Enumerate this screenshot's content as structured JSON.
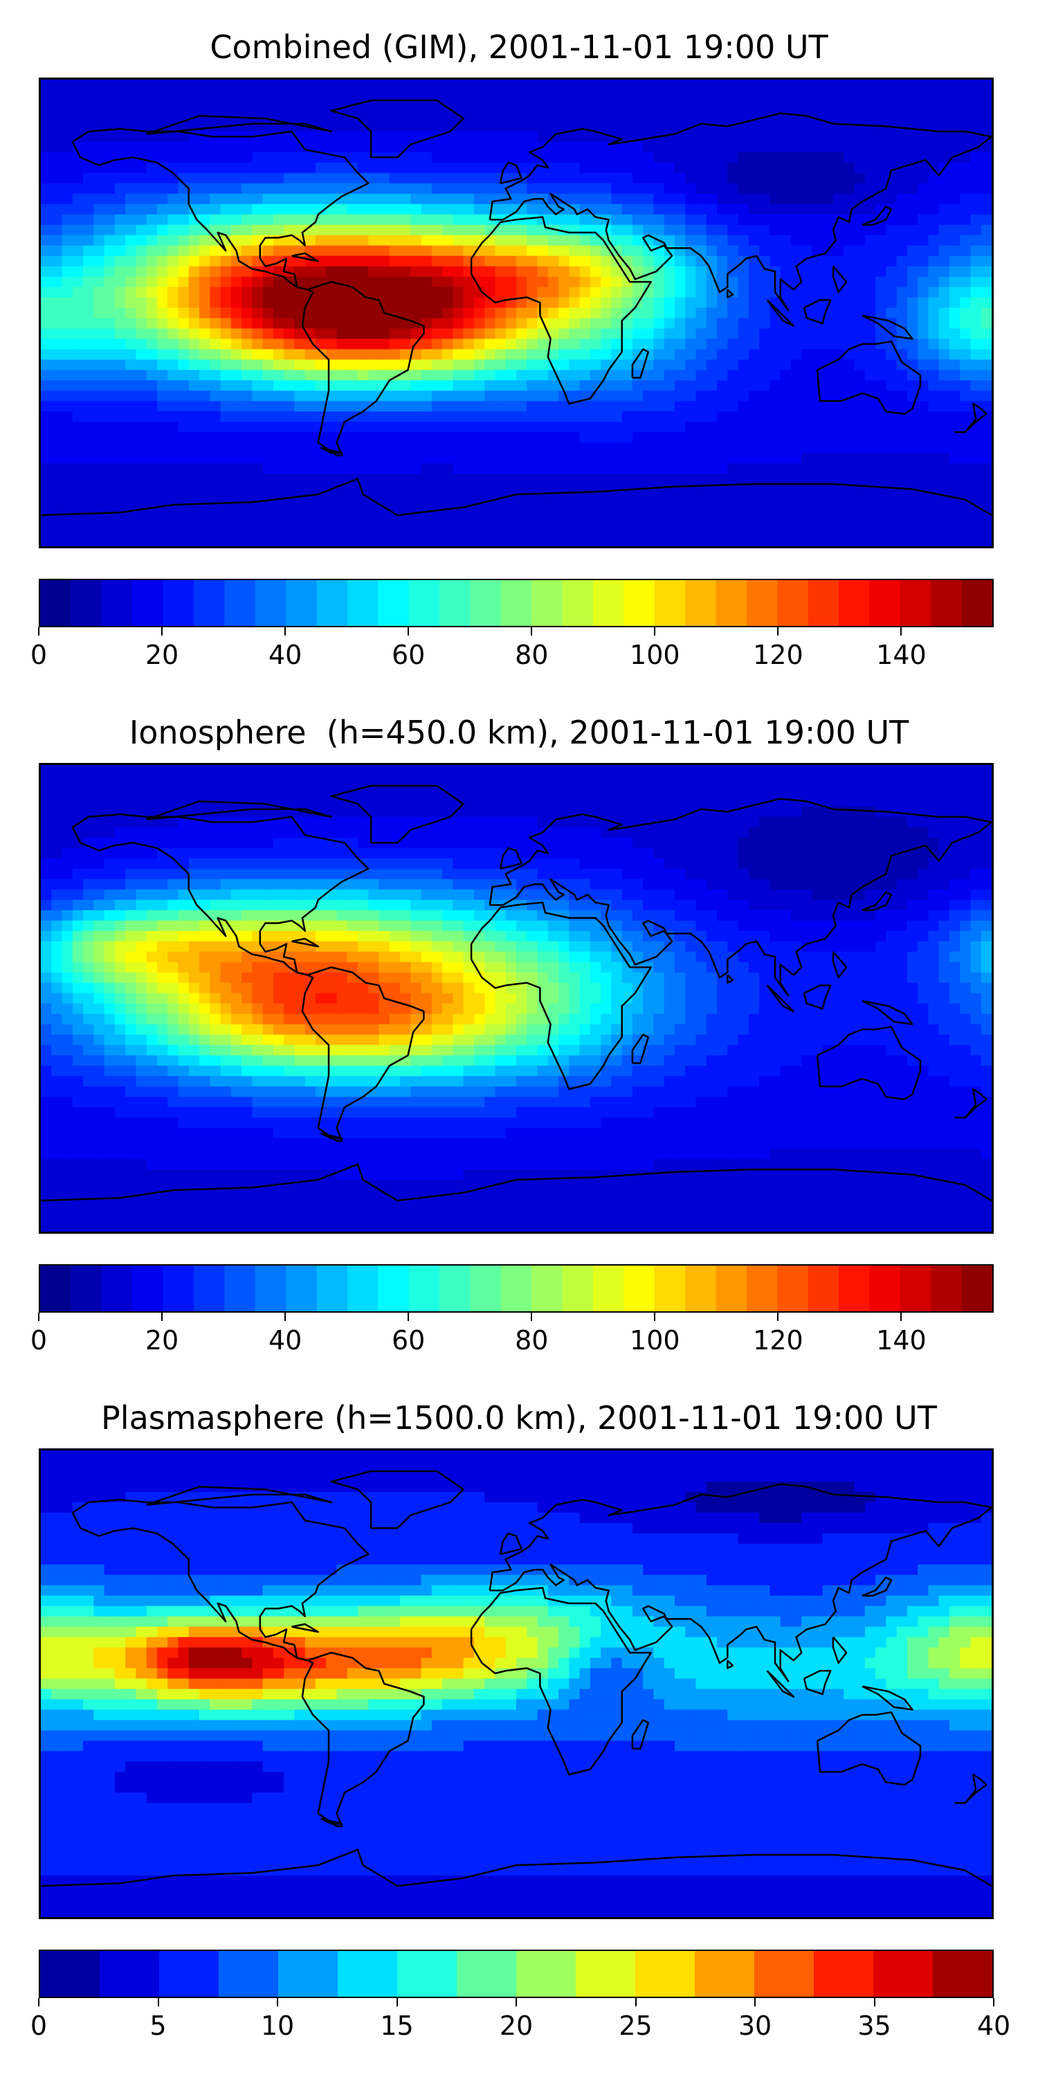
{
  "chart_data": [
    {
      "type": "heatmap",
      "title": "Combined (GIM), 2001-11-01 19:00 UT",
      "colorbar": {
        "range": [
          0,
          155
        ],
        "step": 5,
        "ticks": [
          0,
          20,
          40,
          60,
          80,
          100,
          120,
          140
        ]
      },
      "x_range": [
        -180,
        180
      ],
      "y_range": [
        -90,
        90
      ],
      "background_level": 18,
      "blobs": [
        {
          "lon": -75,
          "lat": 5,
          "slon": 55,
          "slat": 20,
          "amp": 120
        },
        {
          "lon": -40,
          "lat": -10,
          "slon": 40,
          "slat": 14,
          "amp": 40
        },
        {
          "lon": -60,
          "lat": 25,
          "slon": 70,
          "slat": 18,
          "amp": 25
        },
        {
          "lon": 10,
          "lat": 15,
          "slon": 35,
          "slat": 12,
          "amp": 40
        },
        {
          "lon": 40,
          "lat": 0,
          "slon": 30,
          "slat": 25,
          "amp": 25
        },
        {
          "lon": 175,
          "lat": -5,
          "slon": 20,
          "slat": 15,
          "amp": 30
        },
        {
          "lon": 100,
          "lat": 50,
          "slon": 30,
          "slat": 10,
          "amp": -10
        }
      ]
    },
    {
      "type": "heatmap",
      "title": "Ionosphere  (h=450.0 km), 2001-11-01 19:00 UT",
      "colorbar": {
        "range": [
          0,
          155
        ],
        "step": 5,
        "ticks": [
          0,
          20,
          40,
          60,
          80,
          100,
          120,
          140
        ]
      },
      "x_range": [
        -180,
        180
      ],
      "y_range": [
        -90,
        90
      ],
      "background_level": 18,
      "blobs": [
        {
          "lon": -90,
          "lat": 15,
          "slon": 50,
          "slat": 18,
          "amp": 75
        },
        {
          "lon": -70,
          "lat": -12,
          "slon": 50,
          "slat": 14,
          "amp": 55
        },
        {
          "lon": -150,
          "lat": 20,
          "slon": 25,
          "slat": 10,
          "amp": 30
        },
        {
          "lon": 0,
          "lat": 5,
          "slon": 40,
          "slat": 20,
          "amp": 30
        },
        {
          "lon": -45,
          "lat": 0,
          "slon": 80,
          "slat": 30,
          "amp": 20
        },
        {
          "lon": 120,
          "lat": 50,
          "slon": 40,
          "slat": 15,
          "amp": -10
        }
      ]
    },
    {
      "type": "heatmap",
      "title": "Plasmasphere (h=1500.0 km), 2001-11-01 19:00 UT",
      "colorbar": {
        "range": [
          0,
          40
        ],
        "step": 2.5,
        "ticks": [
          0,
          5,
          10,
          15,
          20,
          25,
          30,
          35,
          40
        ]
      },
      "x_range": [
        -180,
        180
      ],
      "y_range": [
        -90,
        90
      ],
      "background_level": 7,
      "blobs": [
        {
          "lon": -100,
          "lat": 8,
          "slon": 50,
          "slat": 14,
          "amp": 20
        },
        {
          "lon": -118,
          "lat": 10,
          "slon": 20,
          "slat": 10,
          "amp": 12
        },
        {
          "lon": -30,
          "lat": 10,
          "slon": 40,
          "slat": 12,
          "amp": 12
        },
        {
          "lon": 0,
          "lat": 25,
          "slon": 40,
          "slat": 12,
          "amp": 8
        },
        {
          "lon": 100,
          "lat": 5,
          "slon": 60,
          "slat": 15,
          "amp": 6
        },
        {
          "lon": 175,
          "lat": 15,
          "slon": 25,
          "slat": 15,
          "amp": 10
        },
        {
          "lon": 35,
          "lat": 5,
          "slon": 12,
          "slat": 10,
          "amp": -6
        },
        {
          "lon": 100,
          "lat": 70,
          "slon": 40,
          "slat": 8,
          "amp": -4
        },
        {
          "lon": -120,
          "lat": -35,
          "slon": 30,
          "slat": 8,
          "amp": -3
        }
      ]
    }
  ],
  "colors": {
    "jet": [
      "#00007f",
      "#0000ff",
      "#007fff",
      "#00ffff",
      "#7fff7f",
      "#ffff00",
      "#ff7f00",
      "#ff0000",
      "#7f0000"
    ],
    "coastline": "#000000"
  }
}
